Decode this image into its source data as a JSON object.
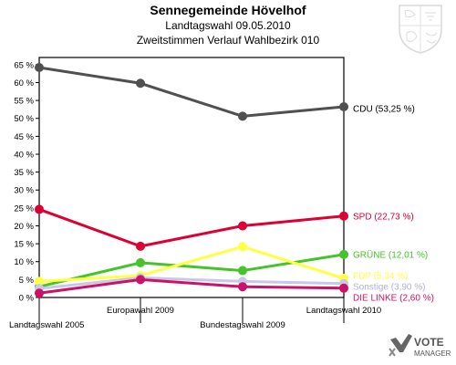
{
  "header": {
    "title": "Sennegemeinde Hövelhof",
    "subtitle1": "Landtagswahl 09.05.2010",
    "subtitle2": "Zweitstimmen Verlauf Wahlbezirk 010"
  },
  "chart_data": {
    "type": "line",
    "title": "Sennegemeinde Hövelhof",
    "subtitle": "Landtagswahl 09.05.2010 / Zweitstimmen Verlauf Wahlbezirk 010",
    "xlabel": "",
    "ylabel": "",
    "categories": [
      "Landtagswahl 2005",
      "Europawahl 2009",
      "Bundestagswahl 2009",
      "Landtagswahl 2010"
    ],
    "ylim": [
      0,
      65
    ],
    "yticks": [
      0,
      5,
      10,
      15,
      20,
      25,
      30,
      35,
      40,
      45,
      50,
      55,
      60,
      65
    ],
    "ytick_labels": [
      "0 %",
      "5 %",
      "10 %",
      "15 %",
      "20 %",
      "25 %",
      "30 %",
      "35 %",
      "40 %",
      "45 %",
      "50 %",
      "55 %",
      "60 %",
      "65 %"
    ],
    "grid": false,
    "legend": "right end labels",
    "series": [
      {
        "name": "CDU",
        "label": "CDU (53,25 %)",
        "color": "#505050",
        "label_color": "#000000",
        "values": [
          64.2,
          59.8,
          50.6,
          53.25
        ]
      },
      {
        "name": "SPD",
        "label": "SPD (22,73 %)",
        "color": "#dd0033",
        "label_color": "#dd0033",
        "values": [
          24.6,
          14.3,
          20.0,
          22.73
        ]
      },
      {
        "name": "GRÜNE",
        "label": "GRÜNE (12,01 %)",
        "color": "#44c428",
        "label_color": "#44c428",
        "values": [
          3.0,
          9.7,
          7.5,
          12.01
        ]
      },
      {
        "name": "FDP",
        "label": "FDP (5,34 %)",
        "color": "#ffff44",
        "label_color": "#ffff44",
        "values": [
          4.5,
          6.1,
          14.2,
          5.34
        ]
      },
      {
        "name": "Sonstige",
        "label": "Sonstige (3,90 %)",
        "color": "#c8c8e8",
        "label_color": "#b0b0d8",
        "values": [
          2.5,
          5.5,
          4.5,
          3.9
        ]
      },
      {
        "name": "DIE LINKE",
        "label": "DIE LINKE (2,60 %)",
        "color": "#cc1166",
        "label_color": "#cc1166",
        "values": [
          1.2,
          5.0,
          3.0,
          2.6
        ]
      }
    ]
  },
  "brand": {
    "line1": "VOTE",
    "line2": "MANAGER",
    "color": "#555555"
  }
}
